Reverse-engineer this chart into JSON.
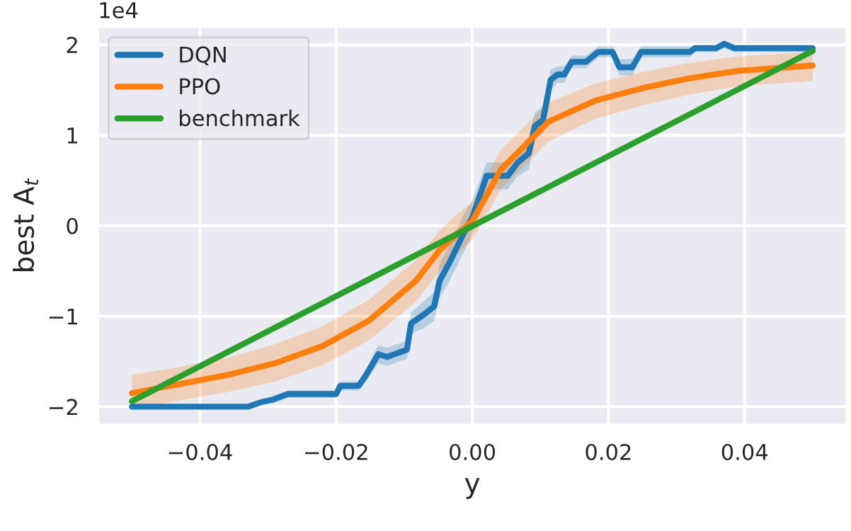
{
  "chart_data": {
    "type": "line",
    "xlabel": "y",
    "ylabel": "best A$_{t}$",
    "annotations": [
      "1e4"
    ],
    "xlim": [
      -0.055,
      0.055
    ],
    "xticks": [
      {
        "value": -0.04,
        "label": "−0.04"
      },
      {
        "value": -0.02,
        "label": "−0.02"
      },
      {
        "value": 0.0,
        "label": "0.00"
      },
      {
        "value": 0.02,
        "label": "0.02"
      },
      {
        "value": 0.04,
        "label": "0.04"
      }
    ],
    "ylim": [
      -2.2,
      2.2
    ],
    "yticks": [
      {
        "value": -2,
        "label": "−2"
      },
      {
        "value": -1,
        "label": "−1"
      },
      0,
      1,
      2
    ],
    "grid": true,
    "legend": "top left",
    "line_style": "solid",
    "marker": "none",
    "series": [
      {
        "name": "DQN",
        "color": "#1f77b4",
        "x": [
          -0.05,
          -0.0329,
          -0.031,
          -0.0292,
          -0.0271,
          -0.02,
          -0.0194,
          -0.0167,
          -0.0156,
          -0.0138,
          -0.0125,
          -0.0096,
          -0.009,
          -0.0069,
          -0.0056,
          -0.0048,
          -0.0033,
          -0.0013,
          0.0,
          0.0021,
          0.0052,
          0.0067,
          0.0083,
          0.0092,
          0.0104,
          0.0115,
          0.0125,
          0.0135,
          0.0146,
          0.0167,
          0.0185,
          0.0206,
          0.0216,
          0.0235,
          0.0248,
          0.032,
          0.0327,
          0.0358,
          0.037,
          0.0385,
          0.05
        ],
        "values": [
          -2.0,
          -2.0,
          -1.95,
          -1.92,
          -1.86,
          -1.86,
          -1.77,
          -1.77,
          -1.65,
          -1.42,
          -1.45,
          -1.37,
          -1.08,
          -0.97,
          -0.89,
          -0.61,
          -0.4,
          -0.09,
          0.09,
          0.55,
          0.55,
          0.7,
          0.8,
          1.1,
          1.17,
          1.61,
          1.67,
          1.67,
          1.81,
          1.81,
          1.92,
          1.92,
          1.75,
          1.75,
          1.92,
          1.92,
          1.96,
          1.96,
          2.01,
          1.96,
          1.96
        ],
        "lower": [
          -2.0,
          -2.0,
          -1.98,
          -1.96,
          -1.9,
          -1.9,
          -1.82,
          -1.82,
          -1.72,
          -1.52,
          -1.55,
          -1.47,
          -1.2,
          -1.12,
          -1.05,
          -0.8,
          -0.6,
          -0.3,
          -0.1,
          0.4,
          0.4,
          0.55,
          0.62,
          0.95,
          1.02,
          1.5,
          1.58,
          1.58,
          1.74,
          1.74,
          1.86,
          1.86,
          1.66,
          1.66,
          1.86,
          1.86,
          1.92,
          1.92,
          1.96,
          1.92,
          1.92
        ],
        "upper": [
          -2.0,
          -2.0,
          -1.92,
          -1.88,
          -1.82,
          -1.82,
          -1.72,
          -1.72,
          -1.58,
          -1.32,
          -1.35,
          -1.27,
          -0.96,
          -0.82,
          -0.73,
          -0.42,
          -0.2,
          0.12,
          0.28,
          0.7,
          0.7,
          0.85,
          0.98,
          1.25,
          1.32,
          1.72,
          1.76,
          1.76,
          1.88,
          1.88,
          1.98,
          1.98,
          1.84,
          1.84,
          1.98,
          1.98,
          2.0,
          2.0,
          2.04,
          2.0,
          2.0
        ]
      },
      {
        "name": "PPO",
        "color": "#ff7f0e",
        "x": [
          -0.05,
          -0.043,
          -0.036,
          -0.029,
          -0.022,
          -0.0152,
          -0.0083,
          -0.0048,
          -0.002,
          0.0,
          0.0042,
          0.0112,
          0.018,
          0.025,
          0.032,
          0.039,
          0.05
        ],
        "values": [
          -1.85,
          -1.75,
          -1.65,
          -1.52,
          -1.33,
          -1.05,
          -0.61,
          -0.27,
          -0.08,
          0.05,
          0.62,
          1.15,
          1.38,
          1.52,
          1.63,
          1.71,
          1.77
        ],
        "lower": [
          -2.02,
          -1.93,
          -1.84,
          -1.72,
          -1.54,
          -1.27,
          -0.84,
          -0.5,
          -0.3,
          -0.16,
          0.4,
          0.93,
          1.18,
          1.33,
          1.45,
          1.54,
          1.6
        ],
        "upper": [
          -1.65,
          -1.56,
          -1.46,
          -1.31,
          -1.11,
          -0.82,
          -0.38,
          -0.05,
          0.14,
          0.26,
          0.84,
          1.36,
          1.57,
          1.7,
          1.8,
          1.87,
          1.92
        ]
      },
      {
        "name": "benchmark",
        "color": "#2ca02c",
        "x": [
          -0.05,
          0.05
        ],
        "values": [
          -1.94,
          1.93
        ]
      }
    ]
  }
}
